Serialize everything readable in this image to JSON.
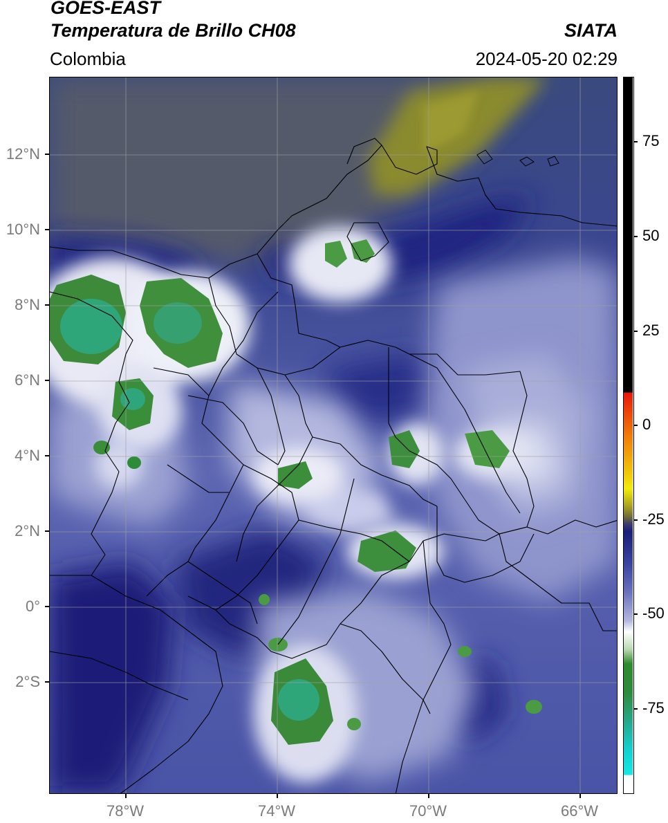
{
  "header": {
    "title_line1": "GOES-EAST",
    "title_line2": "Temperatura de Brillo CH08",
    "region": "Colombia",
    "source": "SIATA",
    "datetime": "2024-05-20 02:29"
  },
  "map": {
    "lon_range": [
      -80,
      -65
    ],
    "lat_range": [
      -5,
      14
    ],
    "lon_ticks": [
      "78°W",
      "74°W",
      "70°W",
      "66°W"
    ],
    "lat_ticks": [
      "12°N",
      "10°N",
      "8°N",
      "6°N",
      "4°N",
      "2°N",
      "0°",
      "2°S"
    ],
    "gridlines": true
  },
  "colorbar": {
    "labels": [
      "75",
      "50",
      "25",
      "0",
      "-25",
      "-50",
      "-75"
    ],
    "range": [
      -95,
      90
    ],
    "colors": {
      "warm_top": "#000000",
      "red": "#e81e0a",
      "orange": "#f59a0a",
      "yellow": "#f2e40a",
      "olive": "#8a8a1e",
      "dark_blue": "#1b1e7a",
      "mid_blue": "#4a55a8",
      "lavender": "#a7acd8",
      "white": "#ffffff",
      "green": "#2e8b2e",
      "teal": "#26b89a",
      "cyan": "#14e0e0"
    }
  }
}
